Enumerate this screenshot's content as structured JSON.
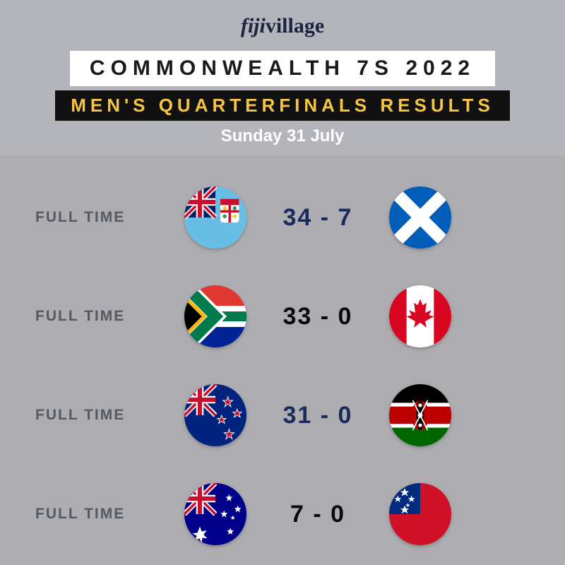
{
  "logo": "fijivillage",
  "title": "COMMONWEALTH 7S 2022",
  "subtitle": "MEN'S QUARTERFINALS RESULTS",
  "date": "Sunday 31 July",
  "matches": [
    {
      "status": "FULL TIME",
      "score": "34 - 7",
      "score_color": "#1a2a5c",
      "team1_flag": "fiji",
      "team2_flag": "scotland"
    },
    {
      "status": "FULL TIME",
      "score": "33 - 0",
      "score_color": "#0a0a0a",
      "team1_flag": "south-africa",
      "team2_flag": "canada"
    },
    {
      "status": "FULL TIME",
      "score": "31 - 0",
      "score_color": "#1a2a5c",
      "team1_flag": "new-zealand",
      "team2_flag": "kenya"
    },
    {
      "status": "FULL TIME",
      "score": "7 - 0",
      "score_color": "#0a0a0a",
      "team1_flag": "australia",
      "team2_flag": "samoa"
    }
  ],
  "colors": {
    "header_bg": "#b5b9be",
    "results_bg": "#adadb1",
    "title_bg": "#ffffff",
    "title_text": "#1a1a1a",
    "subtitle_bg": "#111111",
    "subtitle_text": "#f5c542",
    "date_text": "#ffffff",
    "status_text": "#555a62"
  },
  "flag_svgs": {
    "fiji": "<svg viewBox='0 0 100 100'><rect width='100' height='100' fill='#68bfe5'/><rect width='50' height='50' fill='#012169'/><path d='M0 0 L50 50 M50 0 L0 50' stroke='#fff' stroke-width='8'/><path d='M0 0 L50 50 M50 0 L0 50' stroke='#c8102e' stroke-width='4'/><path d='M25 0 V50 M0 25 H50' stroke='#fff' stroke-width='12'/><path d='M25 0 V50 M0 25 H50' stroke='#c8102e' stroke-width='7'/><rect x='58' y='20' width='30' height='38' rx='4' fill='#fff'/><rect x='58' y='20' width='30' height='10' fill='#c8102e'/><path d='M73 30 V58 M58 40 H88' stroke='#c8102e' stroke-width='4'/><circle cx='65' cy='35' r='3' fill='#ffc726'/><circle cx='81' cy='35' r='3' fill='#2e8b57'/><circle cx='65' cy='48' r='3' fill='#2e8b57'/><circle cx='81' cy='48' r='3' fill='#ffc726'/></svg>",
    "scotland": "<svg viewBox='0 0 100 100'><rect width='100' height='100' fill='#005eb8'/><path d='M-10 -10 L110 110 M110 -10 L-10 110' stroke='#ffffff' stroke-width='20'/></svg>",
    "south-africa": "<svg viewBox='0 0 100 100'><rect width='100' height='33' y='0' fill='#de3831'/><rect width='100' height='34' y='33' fill='#ffffff'/><rect width='100' height='33' y='67' fill='#002395'/><path d='M0 0 L55 50 L0 100 Z' fill='#ffb612'/><path d='M0 8 L46 50 L0 92 Z' fill='#000000'/><path d='M0 0 L50 50 L0 100 L0 92 L42 50 L0 8 Z M50 50 L100 50' fill='none'/><path d='M0 0 L0 8 L42 50 L0 92 L0 100 L12 100 L58 54 L100 54 L100 46 L58 46 L12 0 Z' fill='#007a4d'/><rect x='50' y='42' width='50' height='16' fill='#007a4d'/><path d='M0 0 L50 50 L0 100' fill='none' stroke='#007a4d' stroke-width='18'/><path d='M0 0 L50 50 L0 100' fill='none' stroke='#ffffff' stroke-width='26' stroke-linejoin='miter'/><path d='M0 0 L50 50 L0 100' fill='none' stroke='#007a4d' stroke-width='18'/><path d='M0 14 L36 50 L0 86 Z' fill='#ffb612'/><path d='M0 22 L28 50 L0 78 Z' fill='#000000'/></svg>",
    "canada": "<svg viewBox='0 0 100 100'><rect width='100' height='100' fill='#ffffff'/><rect width='28' height='100' x='0' fill='#d80621'/><rect width='28' height='100' x='72' fill='#d80621'/><path d='M50 22 L54 32 L60 28 L58 44 L68 40 L64 48 L72 50 L58 58 L60 68 L50 60 L40 68 L42 58 L28 50 L36 48 L32 40 L42 44 L40 28 L46 32 Z' fill='#d80621'/></svg>",
    "new-zealand": "<svg viewBox='0 0 100 100'><rect width='100' height='100' fill='#00247d'/><rect width='50' height='50' fill='#00247d'/><path d='M0 0 L50 50 M50 0 L0 50' stroke='#fff' stroke-width='8'/><path d='M0 0 L50 50 M50 0 L0 50' stroke='#c8102e' stroke-width='4'/><path d='M25 0 V50 M0 25 H50' stroke='#fff' stroke-width='12'/><path d='M25 0 V50 M0 25 H50' stroke='#c8102e' stroke-width='7'/><g fill='#c8102e' stroke='#fff' stroke-width='1'><path d='M70 20 l2 6 l6 0 l-5 4 l2 6 l-5 -4 l-5 4 l2 -6 l-5 -4 l6 0 z'/><path d='M85 40 l2 5 l5 0 l-4 3 l2 5 l-5 -3 l-5 3 l2 -5 l-4 -3 l5 0 z'/><path d='M60 50 l2 5 l5 0 l-4 3 l2 5 l-5 -3 l-5 3 l2 -5 l-4 -3 l5 0 z'/><path d='M72 72 l2 6 l6 0 l-5 4 l2 6 l-5 -4 l-5 4 l2 -6 l-5 -4 l6 0 z'/></g></svg>",
    "kenya": "<svg viewBox='0 0 100 100'><rect width='100' height='30' y='0' fill='#000000'/><rect width='100' height='6' y='30' fill='#ffffff'/><rect width='100' height='28' y='36' fill='#bb0000'/><rect width='100' height='6' y='64' fill='#ffffff'/><rect width='100' height='30' y='70' fill='#006600'/><ellipse cx='50' cy='50' rx='14' ry='24' fill='#bb0000'/><ellipse cx='50' cy='50' rx='6' ry='24' fill='#000000'/><circle cx='50' cy='50' r='4' fill='#ffffff'/><circle cx='50' cy='34' r='3' fill='#ffffff'/><circle cx='50' cy='66' r='3' fill='#ffffff'/><path d='M38 26 L62 74 M62 26 L38 74' stroke='#ffffff' stroke-width='2'/></svg>",
    "australia": "<svg viewBox='0 0 100 100'><rect width='100' height='100' fill='#00008b'/><rect width='50' height='50' fill='#00008b'/><path d='M0 0 L50 50 M50 0 L0 50' stroke='#fff' stroke-width='8'/><path d='M0 0 L50 50 M50 0 L0 50' stroke='#c8102e' stroke-width='4'/><path d='M25 0 V50 M0 25 H50' stroke='#fff' stroke-width='12'/><path d='M25 0 V50 M0 25 H50' stroke='#c8102e' stroke-width='7'/><g fill='#ffffff'><path d='M25 70 l3 8 l8 -2 l-5 7 l6 6 l-8 -1 l-1 8 l-4 -7 l-7 4 l3 -8 l-7 -4 l8 -1 z'/><path d='M72 18 l1.5 4 l4 0 l-3 3 l1 4 l-3.5 -2.5 l-3.5 2.5 l1 -4 l-3 -3 l4 0 z'/><path d='M86 36 l1.5 4 l4 0 l-3 3 l1 4 l-3.5 -2.5 l-3.5 2.5 l1 -4 l-3 -3 l4 0 z'/><path d='M64 44 l1.5 4 l4 0 l-3 3 l1 4 l-3.5 -2.5 l-3.5 2.5 l1 -4 l-3 -3 l4 0 z'/><path d='M78 52 l1 2.5 l2.5 0 l-2 2 l1 2.5 l-2.5 -1.5 l-2.5 1.5 l1 -2.5 l-2 -2 l2.5 0 z'/><path d='M74 72 l1.5 4 l4 0 l-3 3 l1 4 l-3.5 -2.5 l-3.5 2.5 l1 -4 l-3 -3 l4 0 z'/></g></svg>",
    "samoa": "<svg viewBox='0 0 100 100'><rect width='100' height='100' fill='#ce1126'/><rect width='50' height='50' fill='#002b7f'/><g fill='#ffffff'><path d='M25 8 l2 5 l5 0 l-4 3 l2 5 l-5 -3 l-5 3 l2 -5 l-4 -3 l5 0 z'/><path d='M14 20 l1.5 4 l4 0 l-3 2.5 l1 4 l-3.5 -2.5 l-3.5 2.5 l1 -4 l-3 -2.5 l4 0 z'/><path d='M36 20 l1.5 4 l4 0 l-3 2.5 l1 4 l-3.5 -2.5 l-3.5 2.5 l1 -4 l-3 -2.5 l4 0 z'/><path d='M30 32 l1 2.5 l2.5 0 l-2 1.5 l1 2.5 l-2.5 -1.5 l-2.5 1.5 l1 -2.5 l-2 -1.5 l2.5 0 z'/><path d='M25 36 l2 5 l5 0 l-4 3 l2 5 l-5 -3 l-5 3 l2 -5 l-4 -3 l5 0 z'/></g></svg>"
  }
}
